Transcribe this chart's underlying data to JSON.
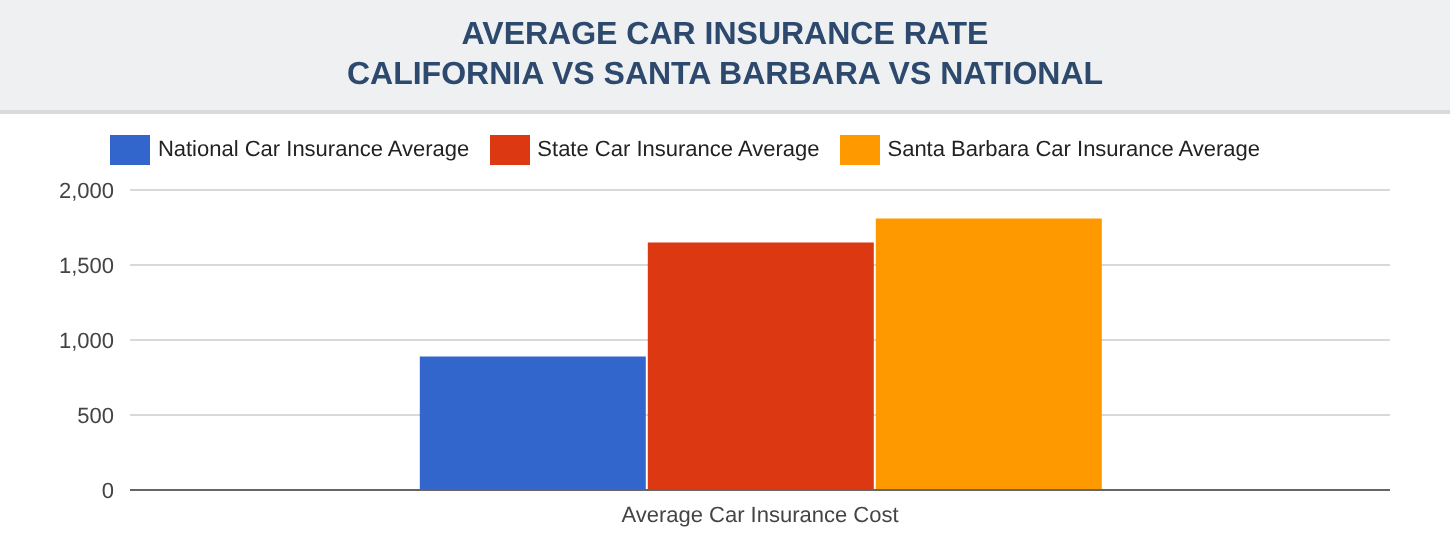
{
  "chart_data": {
    "type": "bar",
    "title": "AVERAGE CAR INSURANCE RATE\nCALIFORNIA VS SANTA BARBARA VS NATIONAL",
    "categories": [
      "Average Car Insurance Cost"
    ],
    "series": [
      {
        "name": "National Car Insurance Average",
        "color": "#3366cc",
        "values": [
          890
        ]
      },
      {
        "name": "State Car Insurance Average",
        "color": "#dc3912",
        "values": [
          1650
        ]
      },
      {
        "name": "Santa Barbara Car Insurance Average",
        "color": "#ff9900",
        "values": [
          1810
        ]
      }
    ],
    "ylim": [
      0,
      2000
    ],
    "yticks": [
      0,
      500,
      {
        "value": 1000,
        "label": "1,000"
      },
      {
        "value": 1500,
        "label": "1,500"
      },
      {
        "value": 2000,
        "label": "2,000"
      }
    ],
    "grid": "y",
    "legend": "top"
  }
}
